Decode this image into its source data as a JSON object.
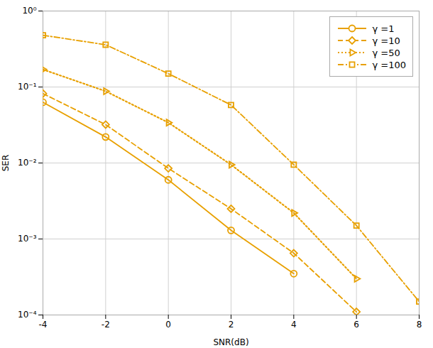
{
  "chart_data": {
    "type": "line",
    "xlabel": "SNR(dB)",
    "ylabel": "SER",
    "x": [
      -4,
      -2,
      0,
      2,
      4,
      6,
      8
    ],
    "color": "#E8A000",
    "series": [
      {
        "name": "γ =1",
        "marker": "circle",
        "line_style": "solid",
        "values": [
          0.063,
          0.022,
          0.006,
          0.0013,
          0.00035,
          null,
          null
        ]
      },
      {
        "name": "γ =10",
        "marker": "diamond",
        "line_style": "dashed",
        "values": [
          0.082,
          0.032,
          0.0085,
          0.0025,
          0.00065,
          0.00011,
          null
        ]
      },
      {
        "name": "γ =50",
        "marker": "triangle-right",
        "line_style": "dotted",
        "values": [
          0.17,
          0.088,
          0.034,
          0.0095,
          0.0022,
          0.0003,
          null
        ]
      },
      {
        "name": "γ =100",
        "marker": "square",
        "line_style": "dashdot",
        "values": [
          0.48,
          0.36,
          0.15,
          0.058,
          0.0095,
          0.0015,
          0.00015
        ]
      }
    ],
    "log": "y",
    "xlim": [
      -4,
      8
    ],
    "ylim": [
      0.0001,
      1.0
    ],
    "xticks": [
      -4,
      -2,
      0,
      2,
      4,
      6,
      8
    ],
    "yticks": [
      {
        "value": 0.0001,
        "label": "10⁻⁴"
      },
      {
        "value": 0.001,
        "label": "10⁻³"
      },
      {
        "value": 0.01,
        "label": "10⁻²"
      },
      {
        "value": 0.1,
        "label": "10⁻¹"
      },
      {
        "value": 1,
        "label": "10⁰"
      }
    ],
    "grid": true,
    "legend": "upper right"
  }
}
